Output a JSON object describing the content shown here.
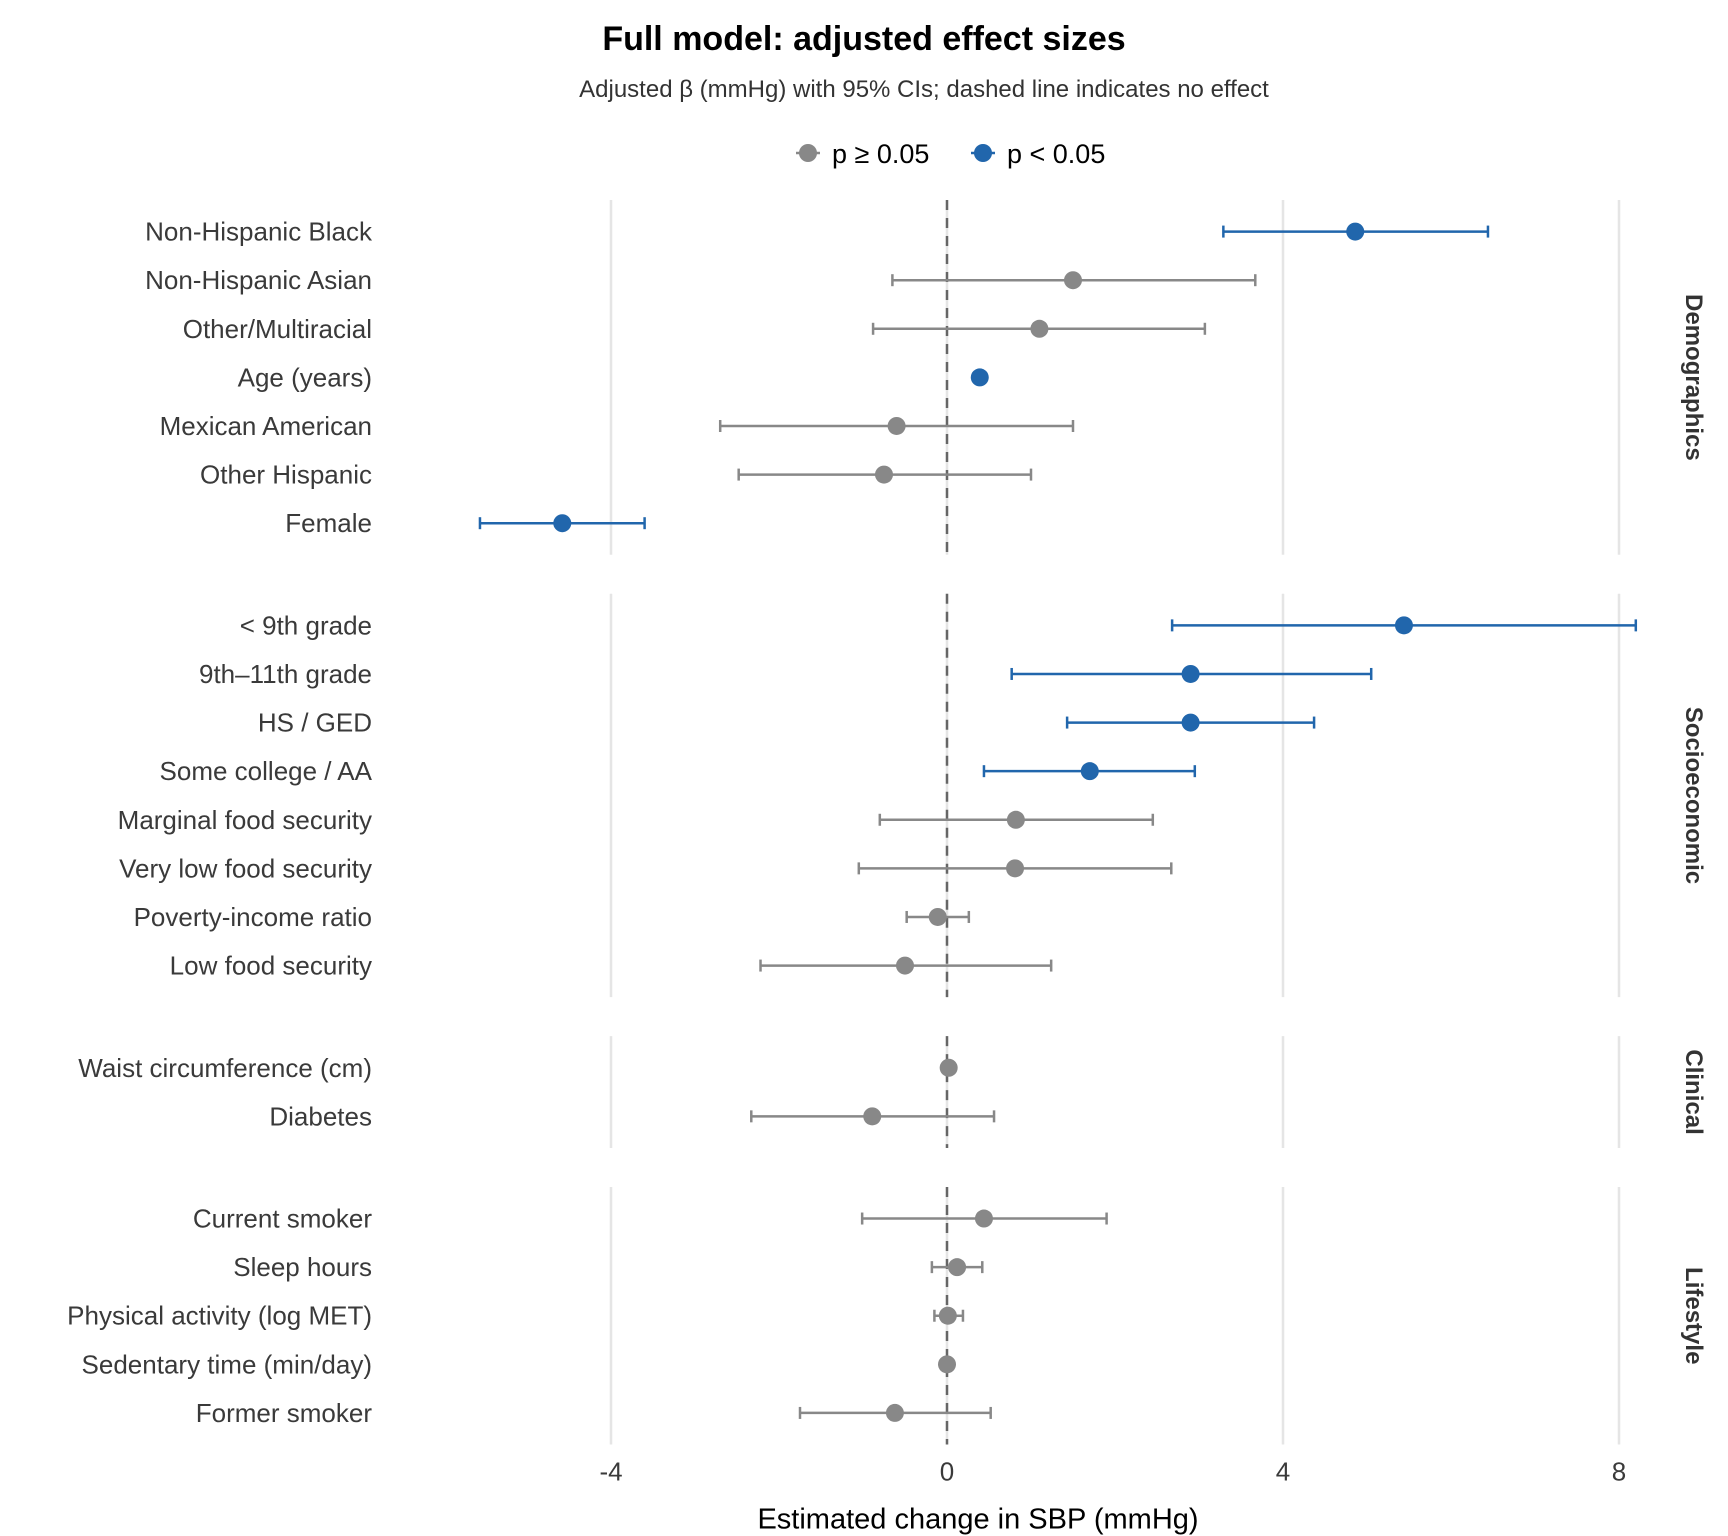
{
  "chart_data": {
    "type": "forest",
    "title": "Full model: adjusted effect sizes",
    "subtitle": "Adjusted β (mmHg) with 95% CIs; dashed line indicates no effect",
    "xlabel": "Estimated change in SBP (mmHg)",
    "ylabel": "",
    "xlim": [
      -6.0,
      8.5
    ],
    "xticks": [
      -4,
      0,
      4,
      8
    ],
    "xtick_labels": [
      "-4",
      "0",
      "4",
      "8"
    ],
    "reference_line": 0,
    "grid": "vertical major",
    "legend": {
      "placement": "top",
      "entries": [
        {
          "label": "p ≥ 0.05",
          "color": "#888888"
        },
        {
          "label": "p < 0.05",
          "color": "#2166ac"
        }
      ]
    },
    "panels": [
      {
        "name": "Demographics",
        "rows": [
          {
            "label": "Non-Hispanic Black",
            "estimate": 4.86,
            "lower": 3.29,
            "upper": 6.44,
            "significant": true
          },
          {
            "label": "Non-Hispanic Asian",
            "estimate": 1.5,
            "lower": -0.65,
            "upper": 3.67,
            "significant": false
          },
          {
            "label": "Other/Multiracial",
            "estimate": 1.1,
            "lower": -0.88,
            "upper": 3.07,
            "significant": false
          },
          {
            "label": "Age (years)",
            "estimate": 0.39,
            "lower": 0.36,
            "upper": 0.42,
            "significant": true
          },
          {
            "label": "Mexican American",
            "estimate": -0.6,
            "lower": -2.7,
            "upper": 1.5,
            "significant": false
          },
          {
            "label": "Other Hispanic",
            "estimate": -0.75,
            "lower": -2.48,
            "upper": 1.0,
            "significant": false
          },
          {
            "label": "Female",
            "estimate": -4.58,
            "lower": -5.56,
            "upper": -3.6,
            "significant": true
          }
        ]
      },
      {
        "name": "Socioeconomic",
        "rows": [
          {
            "label": "< 9th grade",
            "estimate": 5.44,
            "lower": 2.68,
            "upper": 8.2,
            "significant": true
          },
          {
            "label": "9th–11th grade",
            "estimate": 2.9,
            "lower": 0.77,
            "upper": 5.05,
            "significant": true
          },
          {
            "label": "HS / GED",
            "estimate": 2.9,
            "lower": 1.43,
            "upper": 4.37,
            "significant": true
          },
          {
            "label": "Some college / AA",
            "estimate": 1.7,
            "lower": 0.44,
            "upper": 2.95,
            "significant": true
          },
          {
            "label": "Marginal food security",
            "estimate": 0.82,
            "lower": -0.8,
            "upper": 2.45,
            "significant": false
          },
          {
            "label": "Very low food security",
            "estimate": 0.81,
            "lower": -1.05,
            "upper": 2.67,
            "significant": false
          },
          {
            "label": "Poverty-income ratio",
            "estimate": -0.11,
            "lower": -0.48,
            "upper": 0.26,
            "significant": false
          },
          {
            "label": "Low food security",
            "estimate": -0.5,
            "lower": -2.22,
            "upper": 1.24,
            "significant": false
          }
        ]
      },
      {
        "name": "Clinical",
        "rows": [
          {
            "label": "Waist circumference (cm)",
            "estimate": 0.02,
            "lower": -0.01,
            "upper": 0.05,
            "significant": false
          },
          {
            "label": "Diabetes",
            "estimate": -0.89,
            "lower": -2.33,
            "upper": 0.56,
            "significant": false
          }
        ]
      },
      {
        "name": "Lifestyle",
        "rows": [
          {
            "label": "Current smoker",
            "estimate": 0.44,
            "lower": -1.01,
            "upper": 1.9,
            "significant": false
          },
          {
            "label": "Sleep hours",
            "estimate": 0.12,
            "lower": -0.18,
            "upper": 0.42,
            "significant": false
          },
          {
            "label": "Physical activity (log MET)",
            "estimate": 0.01,
            "lower": -0.15,
            "upper": 0.19,
            "significant": false
          },
          {
            "label": "Sedentary time (min/day)",
            "estimate": 0.0,
            "lower": -0.01,
            "upper": 0.01,
            "significant": false
          },
          {
            "label": "Former smoker",
            "estimate": -0.62,
            "lower": -1.75,
            "upper": 0.52,
            "significant": false
          }
        ]
      }
    ],
    "colors": {
      "significant": "#2166ac",
      "nonsignificant": "#888888",
      "reference_line": "#666666",
      "grid": "#e5e5e5"
    }
  }
}
